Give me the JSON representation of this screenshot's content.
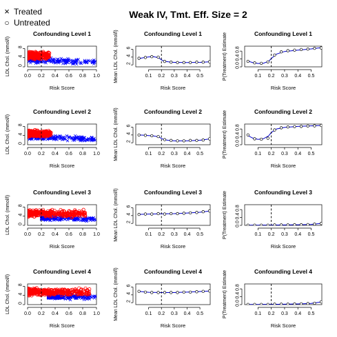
{
  "figure": {
    "title": "Weak IV, Tmt. Eff. Size = 2",
    "legend": [
      {
        "label": "Treated",
        "marker": "×",
        "color": "#0000ff"
      },
      {
        "label": "Untreated",
        "marker": "○",
        "color": "#ff0000"
      }
    ]
  },
  "chart_data": [
    {
      "type": "scatter",
      "title": "Confounding  Level 1",
      "xlabel": "Risk Score",
      "ylabel": "LDL Chol. (mmol/l)",
      "xlim": [
        0,
        1
      ],
      "ylim": [
        0,
        9
      ],
      "xticks": [
        0.0,
        0.2,
        0.4,
        0.6,
        0.8,
        1.0
      ],
      "yticks": [
        0,
        4,
        8
      ],
      "xtick_labels": [
        "0.0",
        "0.2",
        "0.4",
        "0.6",
        "0.8",
        "1.0"
      ],
      "ytick_labels": [
        "0",
        "4",
        "8"
      ],
      "vline_x": 0.2,
      "series": [
        {
          "name": "Treated",
          "marker": "x",
          "color": "#0000ff",
          "x_range": [
            0.02,
            1.0
          ],
          "y_mean_at_x0": 3.0,
          "y_mean_at_x1": 2.0,
          "y_spread": 1.6
        },
        {
          "name": "Untreated",
          "marker": "o",
          "color": "#ff0000",
          "x_range": [
            0.0,
            0.32
          ],
          "y_mean": 5.0,
          "y_spread": 2.0
        }
      ]
    },
    {
      "type": "line",
      "title": "Confounding  Level 1",
      "xlabel": "Risk Score",
      "ylabel": "Mean LDL Chol. (mmol/l)",
      "xlim": [
        0,
        0.58
      ],
      "ylim": [
        1.5,
        6.8
      ],
      "xticks": [
        0.1,
        0.2,
        0.3,
        0.4,
        0.5
      ],
      "yticks": [
        2,
        4,
        6
      ],
      "xtick_labels": [
        "0.1",
        "0.2",
        "0.3",
        "0.4",
        "0.5"
      ],
      "ytick_labels": [
        "2",
        "4",
        "6"
      ],
      "vline_x": 0.2,
      "points": {
        "x": [
          0.025,
          0.075,
          0.125,
          0.175,
          0.225,
          0.275,
          0.325,
          0.375,
          0.425,
          0.475,
          0.525,
          0.575
        ],
        "y": [
          3.7,
          3.9,
          4.1,
          4.0,
          2.9,
          2.7,
          2.6,
          2.6,
          2.6,
          2.7,
          2.7,
          2.8
        ]
      },
      "curve": {
        "x": [
          0.02,
          0.06,
          0.1,
          0.14,
          0.18,
          0.2,
          0.22,
          0.26,
          0.3,
          0.4,
          0.5,
          0.58
        ],
        "y": [
          3.6,
          3.85,
          4.05,
          4.1,
          3.8,
          3.3,
          2.95,
          2.75,
          2.65,
          2.6,
          2.65,
          2.8
        ]
      }
    },
    {
      "type": "line",
      "title": "Confounding  Level 1",
      "xlabel": "Risk Score",
      "ylabel": "P(Treatment) Estimate",
      "xlim": [
        0,
        0.58
      ],
      "ylim": [
        0,
        1.05
      ],
      "xticks": [
        0.1,
        0.2,
        0.3,
        0.4,
        0.5
      ],
      "yticks": [
        0.0,
        0.4,
        0.8
      ],
      "xtick_labels": [
        "0.1",
        "0.2",
        "0.3",
        "0.4",
        "0.5"
      ],
      "ytick_labels": [
        "0.0",
        "0.4",
        "0.8"
      ],
      "vline_x": 0.2,
      "points": {
        "x": [
          0.025,
          0.075,
          0.125,
          0.175,
          0.225,
          0.275,
          0.325,
          0.375,
          0.425,
          0.475,
          0.525,
          0.575
        ],
        "y": [
          0.28,
          0.2,
          0.18,
          0.25,
          0.6,
          0.76,
          0.82,
          0.85,
          0.88,
          0.9,
          0.94,
          0.96
        ]
      },
      "curve": {
        "x": [
          0.02,
          0.06,
          0.1,
          0.14,
          0.18,
          0.2,
          0.24,
          0.3,
          0.4,
          0.5,
          0.58
        ],
        "y": [
          0.3,
          0.22,
          0.17,
          0.18,
          0.28,
          0.42,
          0.65,
          0.78,
          0.85,
          0.91,
          0.98
        ]
      }
    },
    {
      "type": "scatter",
      "title": "Confounding  Level 2",
      "xlabel": "Risk Score",
      "ylabel": "LDL Chol. (mmol/l)",
      "xlim": [
        0,
        1
      ],
      "ylim": [
        0,
        9
      ],
      "xticks": [
        0.0,
        0.2,
        0.4,
        0.6,
        0.8,
        1.0
      ],
      "yticks": [
        0,
        4,
        8
      ],
      "xtick_labels": [
        "0.0",
        "0.2",
        "0.4",
        "0.6",
        "0.8",
        "1.0"
      ],
      "ytick_labels": [
        "0",
        "4",
        "8"
      ],
      "vline_x": 0.2,
      "series": [
        {
          "name": "Treated",
          "marker": "x",
          "color": "#0000ff",
          "x_range": [
            0.02,
            1.0
          ],
          "y_mean_at_x0": 3.2,
          "y_mean_at_x1": 2.4,
          "y_spread": 1.6
        },
        {
          "name": "Untreated",
          "marker": "o",
          "color": "#ff0000",
          "x_range": [
            0.0,
            0.34
          ],
          "y_mean": 4.8,
          "y_spread": 1.9
        }
      ]
    },
    {
      "type": "line",
      "title": "Confounding  Level 2",
      "xlabel": "Risk Score",
      "ylabel": "Mean LDL Chol. (mmol/l)",
      "xlim": [
        0,
        0.58
      ],
      "ylim": [
        1.5,
        6.8
      ],
      "xticks": [
        0.1,
        0.2,
        0.3,
        0.4,
        0.5
      ],
      "yticks": [
        2,
        4,
        6
      ],
      "xtick_labels": [
        "0.1",
        "0.2",
        "0.3",
        "0.4",
        "0.5"
      ],
      "ytick_labels": [
        "2",
        "4",
        "6"
      ],
      "vline_x": 0.2,
      "points": {
        "x": [
          0.025,
          0.075,
          0.125,
          0.175,
          0.225,
          0.275,
          0.325,
          0.375,
          0.425,
          0.475,
          0.525,
          0.575
        ],
        "y": [
          4.0,
          3.9,
          3.8,
          3.6,
          2.8,
          2.6,
          2.5,
          2.5,
          2.6,
          2.6,
          2.7,
          3.0
        ]
      },
      "curve": {
        "x": [
          0.02,
          0.06,
          0.1,
          0.14,
          0.18,
          0.2,
          0.22,
          0.26,
          0.3,
          0.4,
          0.5,
          0.58
        ],
        "y": [
          4.0,
          3.95,
          3.85,
          3.75,
          3.5,
          3.1,
          2.8,
          2.6,
          2.5,
          2.5,
          2.65,
          3.0
        ]
      }
    },
    {
      "type": "line",
      "title": "Confounding  Level 2",
      "xlabel": "Risk Score",
      "ylabel": "P(Treatment) Estimate",
      "xlim": [
        0,
        0.58
      ],
      "ylim": [
        0,
        1.05
      ],
      "xticks": [
        0.1,
        0.2,
        0.3,
        0.4,
        0.5
      ],
      "yticks": [
        0.0,
        0.4,
        0.8
      ],
      "xtick_labels": [
        "0.1",
        "0.2",
        "0.3",
        "0.4",
        "0.5"
      ],
      "ytick_labels": [
        "0.0",
        "0.4",
        "0.8"
      ],
      "vline_x": 0.2,
      "points": {
        "x": [
          0.025,
          0.075,
          0.125,
          0.175,
          0.225,
          0.275,
          0.325,
          0.375,
          0.425,
          0.475,
          0.525,
          0.575
        ],
        "y": [
          0.5,
          0.3,
          0.28,
          0.33,
          0.75,
          0.86,
          0.9,
          0.92,
          0.93,
          0.95,
          0.96,
          0.98
        ]
      },
      "curve": {
        "x": [
          0.02,
          0.06,
          0.1,
          0.14,
          0.18,
          0.2,
          0.24,
          0.3,
          0.4,
          0.5,
          0.58
        ],
        "y": [
          0.48,
          0.34,
          0.27,
          0.3,
          0.45,
          0.62,
          0.8,
          0.88,
          0.93,
          0.96,
          0.98
        ]
      }
    },
    {
      "type": "scatter",
      "title": "Confounding  Level 3",
      "xlabel": "Risk Score",
      "ylabel": "LDL Chol. (mmol/l)",
      "xlim": [
        0,
        1
      ],
      "ylim": [
        0,
        9
      ],
      "xticks": [
        0.0,
        0.2,
        0.4,
        0.6,
        0.8,
        1.0
      ],
      "yticks": [
        0,
        4,
        8
      ],
      "xtick_labels": [
        "0.0",
        "0.2",
        "0.4",
        "0.6",
        "0.8",
        "1.0"
      ],
      "ytick_labels": [
        "0",
        "4",
        "8"
      ],
      "vline_x": 0.2,
      "series": [
        {
          "name": "Treated",
          "marker": "x",
          "color": "#0000ff",
          "x_range": [
            0.2,
            1.0
          ],
          "y_mean_at_x0": 3.2,
          "y_mean_at_x1": 2.8,
          "y_spread": 1.5
        },
        {
          "name": "Untreated",
          "marker": "o",
          "color": "#ff0000",
          "x_range": [
            0.0,
            0.85
          ],
          "y_mean": 5.2,
          "y_spread": 2.0
        }
      ]
    },
    {
      "type": "line",
      "title": "Confounding  Level 3",
      "xlabel": "Risk Score",
      "ylabel": "Mean LDL Chol. (mmol/l)",
      "xlim": [
        0,
        0.58
      ],
      "ylim": [
        1.5,
        6.8
      ],
      "xticks": [
        0.1,
        0.2,
        0.3,
        0.4,
        0.5
      ],
      "yticks": [
        2,
        4,
        6
      ],
      "xtick_labels": [
        "0.1",
        "0.2",
        "0.3",
        "0.4",
        "0.5"
      ],
      "ytick_labels": [
        "2",
        "4",
        "6"
      ],
      "vline_x": 0.2,
      "points": {
        "x": [
          0.025,
          0.075,
          0.125,
          0.175,
          0.225,
          0.275,
          0.325,
          0.375,
          0.425,
          0.475,
          0.525,
          0.575
        ],
        "y": [
          4.3,
          4.4,
          4.4,
          4.5,
          4.4,
          4.5,
          4.5,
          4.6,
          4.7,
          4.8,
          5.0,
          5.2
        ]
      },
      "curve": {
        "x": [
          0.02,
          0.1,
          0.2,
          0.3,
          0.4,
          0.5,
          0.58
        ],
        "y": [
          4.3,
          4.4,
          4.45,
          4.5,
          4.65,
          4.85,
          5.2
        ]
      }
    },
    {
      "type": "line",
      "title": "Confounding  Level 3",
      "xlabel": "Risk Score",
      "ylabel": "P(Treatment) Estimate",
      "xlim": [
        0,
        0.58
      ],
      "ylim": [
        0,
        1.05
      ],
      "xticks": [
        0.1,
        0.2,
        0.3,
        0.4,
        0.5
      ],
      "yticks": [
        0.0,
        0.4,
        0.8
      ],
      "xtick_labels": [
        "0.1",
        "0.2",
        "0.3",
        "0.4",
        "0.5"
      ],
      "ytick_labels": [
        "0.0",
        "0.4",
        "0.8"
      ],
      "vline_x": 0.2,
      "points": {
        "x": [
          0.025,
          0.075,
          0.125,
          0.175,
          0.225,
          0.275,
          0.325,
          0.375,
          0.425,
          0.475,
          0.525,
          0.575
        ],
        "y": [
          0.01,
          0.01,
          0.01,
          0.01,
          0.02,
          0.02,
          0.02,
          0.03,
          0.03,
          0.04,
          0.06,
          0.1
        ]
      },
      "curve": {
        "x": [
          0.02,
          0.1,
          0.2,
          0.3,
          0.4,
          0.5,
          0.58
        ],
        "y": [
          0.01,
          0.01,
          0.015,
          0.02,
          0.03,
          0.05,
          0.1
        ]
      }
    },
    {
      "type": "scatter",
      "title": "Confounding  Level 4",
      "xlabel": "Risk Score",
      "ylabel": "LDL Chol. (mmol/l)",
      "xlim": [
        0,
        1
      ],
      "ylim": [
        0,
        9
      ],
      "xticks": [
        0.0,
        0.2,
        0.4,
        0.6,
        0.8,
        1.0
      ],
      "yticks": [
        0,
        4,
        8
      ],
      "xtick_labels": [
        "0.0",
        "0.2",
        "0.4",
        "0.6",
        "0.8",
        "1.0"
      ],
      "ytick_labels": [
        "0",
        "4",
        "8"
      ],
      "vline_x": 0.2,
      "series": [
        {
          "name": "Treated",
          "marker": "x",
          "color": "#0000ff",
          "x_range": [
            0.3,
            1.0
          ],
          "y_mean_at_x0": 3.8,
          "y_mean_at_x1": 3.2,
          "y_spread": 1.5
        },
        {
          "name": "Untreated",
          "marker": "o",
          "color": "#ff0000",
          "x_range": [
            0.0,
            0.9
          ],
          "y_mean": 5.5,
          "y_spread": 2.0
        }
      ]
    },
    {
      "type": "line",
      "title": "Confounding  Level 4",
      "xlabel": "Risk Score",
      "ylabel": "Mean LDL Chol. (mmol/l)",
      "xlim": [
        0,
        0.58
      ],
      "ylim": [
        1.5,
        6.8
      ],
      "xticks": [
        0.1,
        0.2,
        0.3,
        0.4,
        0.5
      ],
      "yticks": [
        2,
        4,
        6
      ],
      "xtick_labels": [
        "0.1",
        "0.2",
        "0.3",
        "0.4",
        "0.5"
      ],
      "ytick_labels": [
        "2",
        "4",
        "6"
      ],
      "vline_x": 0.2,
      "points": {
        "x": [
          0.025,
          0.075,
          0.125,
          0.175,
          0.225,
          0.275,
          0.325,
          0.375,
          0.425,
          0.475,
          0.525,
          0.575
        ],
        "y": [
          4.9,
          4.7,
          4.6,
          4.6,
          4.6,
          4.6,
          4.6,
          4.7,
          4.7,
          4.8,
          4.9,
          5.0
        ]
      },
      "curve": {
        "x": [
          0.02,
          0.1,
          0.2,
          0.3,
          0.4,
          0.5,
          0.58
        ],
        "y": [
          4.9,
          4.65,
          4.6,
          4.6,
          4.7,
          4.85,
          5.0
        ]
      }
    },
    {
      "type": "line",
      "title": "Confounding  Level 4",
      "xlabel": "Risk Score",
      "ylabel": "P(Treatment) Estimate",
      "xlim": [
        0,
        0.58
      ],
      "ylim": [
        0,
        1.05
      ],
      "xticks": [
        0.1,
        0.2,
        0.3,
        0.4,
        0.5
      ],
      "yticks": [
        0.0,
        0.4,
        0.8
      ],
      "xtick_labels": [
        "0.1",
        "0.2",
        "0.3",
        "0.4",
        "0.5"
      ],
      "ytick_labels": [
        "0.0",
        "0.4",
        "0.8"
      ],
      "vline_x": 0.2,
      "points": {
        "x": [
          0.025,
          0.075,
          0.125,
          0.175,
          0.225,
          0.275,
          0.325,
          0.375,
          0.425,
          0.475,
          0.525,
          0.575
        ],
        "y": [
          0.01,
          0.01,
          0.01,
          0.01,
          0.02,
          0.02,
          0.02,
          0.03,
          0.04,
          0.05,
          0.07,
          0.14
        ]
      },
      "curve": {
        "x": [
          0.02,
          0.1,
          0.2,
          0.3,
          0.4,
          0.5,
          0.58
        ],
        "y": [
          0.01,
          0.01,
          0.015,
          0.02,
          0.035,
          0.06,
          0.14
        ]
      }
    }
  ]
}
